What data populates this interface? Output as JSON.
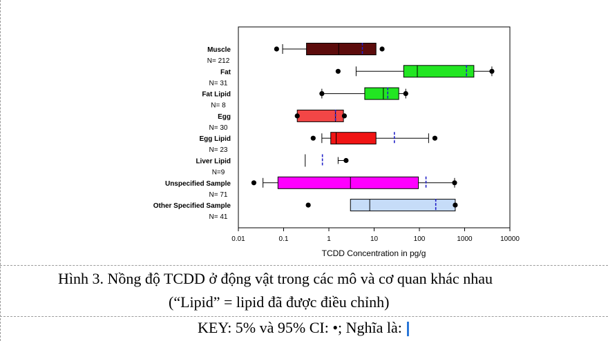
{
  "chart_data": {
    "type": "box",
    "orientation": "horizontal",
    "x_scale": "log",
    "xlim": [
      0.01,
      10000
    ],
    "xlabel": "TCDD Concentration in pg/g",
    "x_ticks": [
      "0.01",
      "0.1",
      "1",
      "10",
      "100",
      "1000",
      "10000"
    ],
    "x_tick_values": [
      0.01,
      0.1,
      1,
      10,
      100,
      1000,
      10000
    ],
    "grid": false,
    "series": [
      {
        "label": "Muscle",
        "n_label": "N= 212",
        "color": "#5c0c0c",
        "whisker_low": 0.095,
        "q1": 0.32,
        "median": 1.65,
        "q3": 11,
        "whisker_high": 11,
        "mean": 5.5,
        "ci_low": 0.07,
        "ci_high": 15
      },
      {
        "label": "Fat",
        "n_label": "N= 31",
        "color": "#22e622",
        "whisker_low": 4,
        "q1": 45,
        "median": 90,
        "q3": 1600,
        "whisker_high": 4000,
        "mean": 1100,
        "ci_low": 1.6,
        "ci_high": 4000
      },
      {
        "label": "Fat Lipid",
        "n_label": "N= 8",
        "color": "#22e622",
        "whisker_low": 0.7,
        "q1": 6.2,
        "median": 16,
        "q3": 35,
        "whisker_high": 50,
        "mean": 20,
        "ci_low": 0.7,
        "ci_high": 50
      },
      {
        "label": "Egg",
        "n_label": "N= 30",
        "color": "#f24646",
        "whisker_low": 0.2,
        "q1": 0.2,
        "median": 1.4,
        "q3": 2.1,
        "whisker_high": 2.1,
        "mean": 1.4,
        "ci_low": 0.2,
        "ci_high": 2.2
      },
      {
        "label": "Egg Lipid",
        "n_label": "N= 23",
        "color": "#f01414",
        "whisker_low": 0.7,
        "q1": 1.1,
        "median": 1.45,
        "q3": 11,
        "whisker_high": 160,
        "mean": 28,
        "ci_low": 0.45,
        "ci_high": 220
      },
      {
        "label": "Liver Lipid",
        "n_label": "N=9",
        "color": "#000000",
        "whisker_low": 0.3,
        "q1": null,
        "median": 0.3,
        "q3": null,
        "whisker_high": 2.4,
        "mean": 0.72,
        "ci_low": null,
        "ci_high": 2.4
      },
      {
        "label": "Unspecified Sample",
        "n_label": "N= 71",
        "color": "#ff00ff",
        "whisker_low": 0.035,
        "q1": 0.075,
        "median": 3,
        "q3": 95,
        "whisker_high": 600,
        "mean": 140,
        "ci_low": 0.022,
        "ci_high": 600
      },
      {
        "label": "Other Specified Sample",
        "n_label": "N= 41",
        "color": "#c6dcf8",
        "whisker_low": 3,
        "q1": 3,
        "median": 8,
        "q3": 620,
        "whisker_high": 620,
        "mean": 230,
        "ci_low": 0.35,
        "ci_high": 620
      }
    ],
    "mean_marker_color": "#2020c8"
  },
  "caption": {
    "line1": "Hình 3. Nồng độ TCDD ở động vật trong các mô và cơ quan khác nhau",
    "line2": "(“Lipid” = lipid đã được điều chỉnh)"
  },
  "key": {
    "text": "KEY: 5% và 95% CI: •; Nghĩa là:",
    "mean_symbol": "|"
  }
}
